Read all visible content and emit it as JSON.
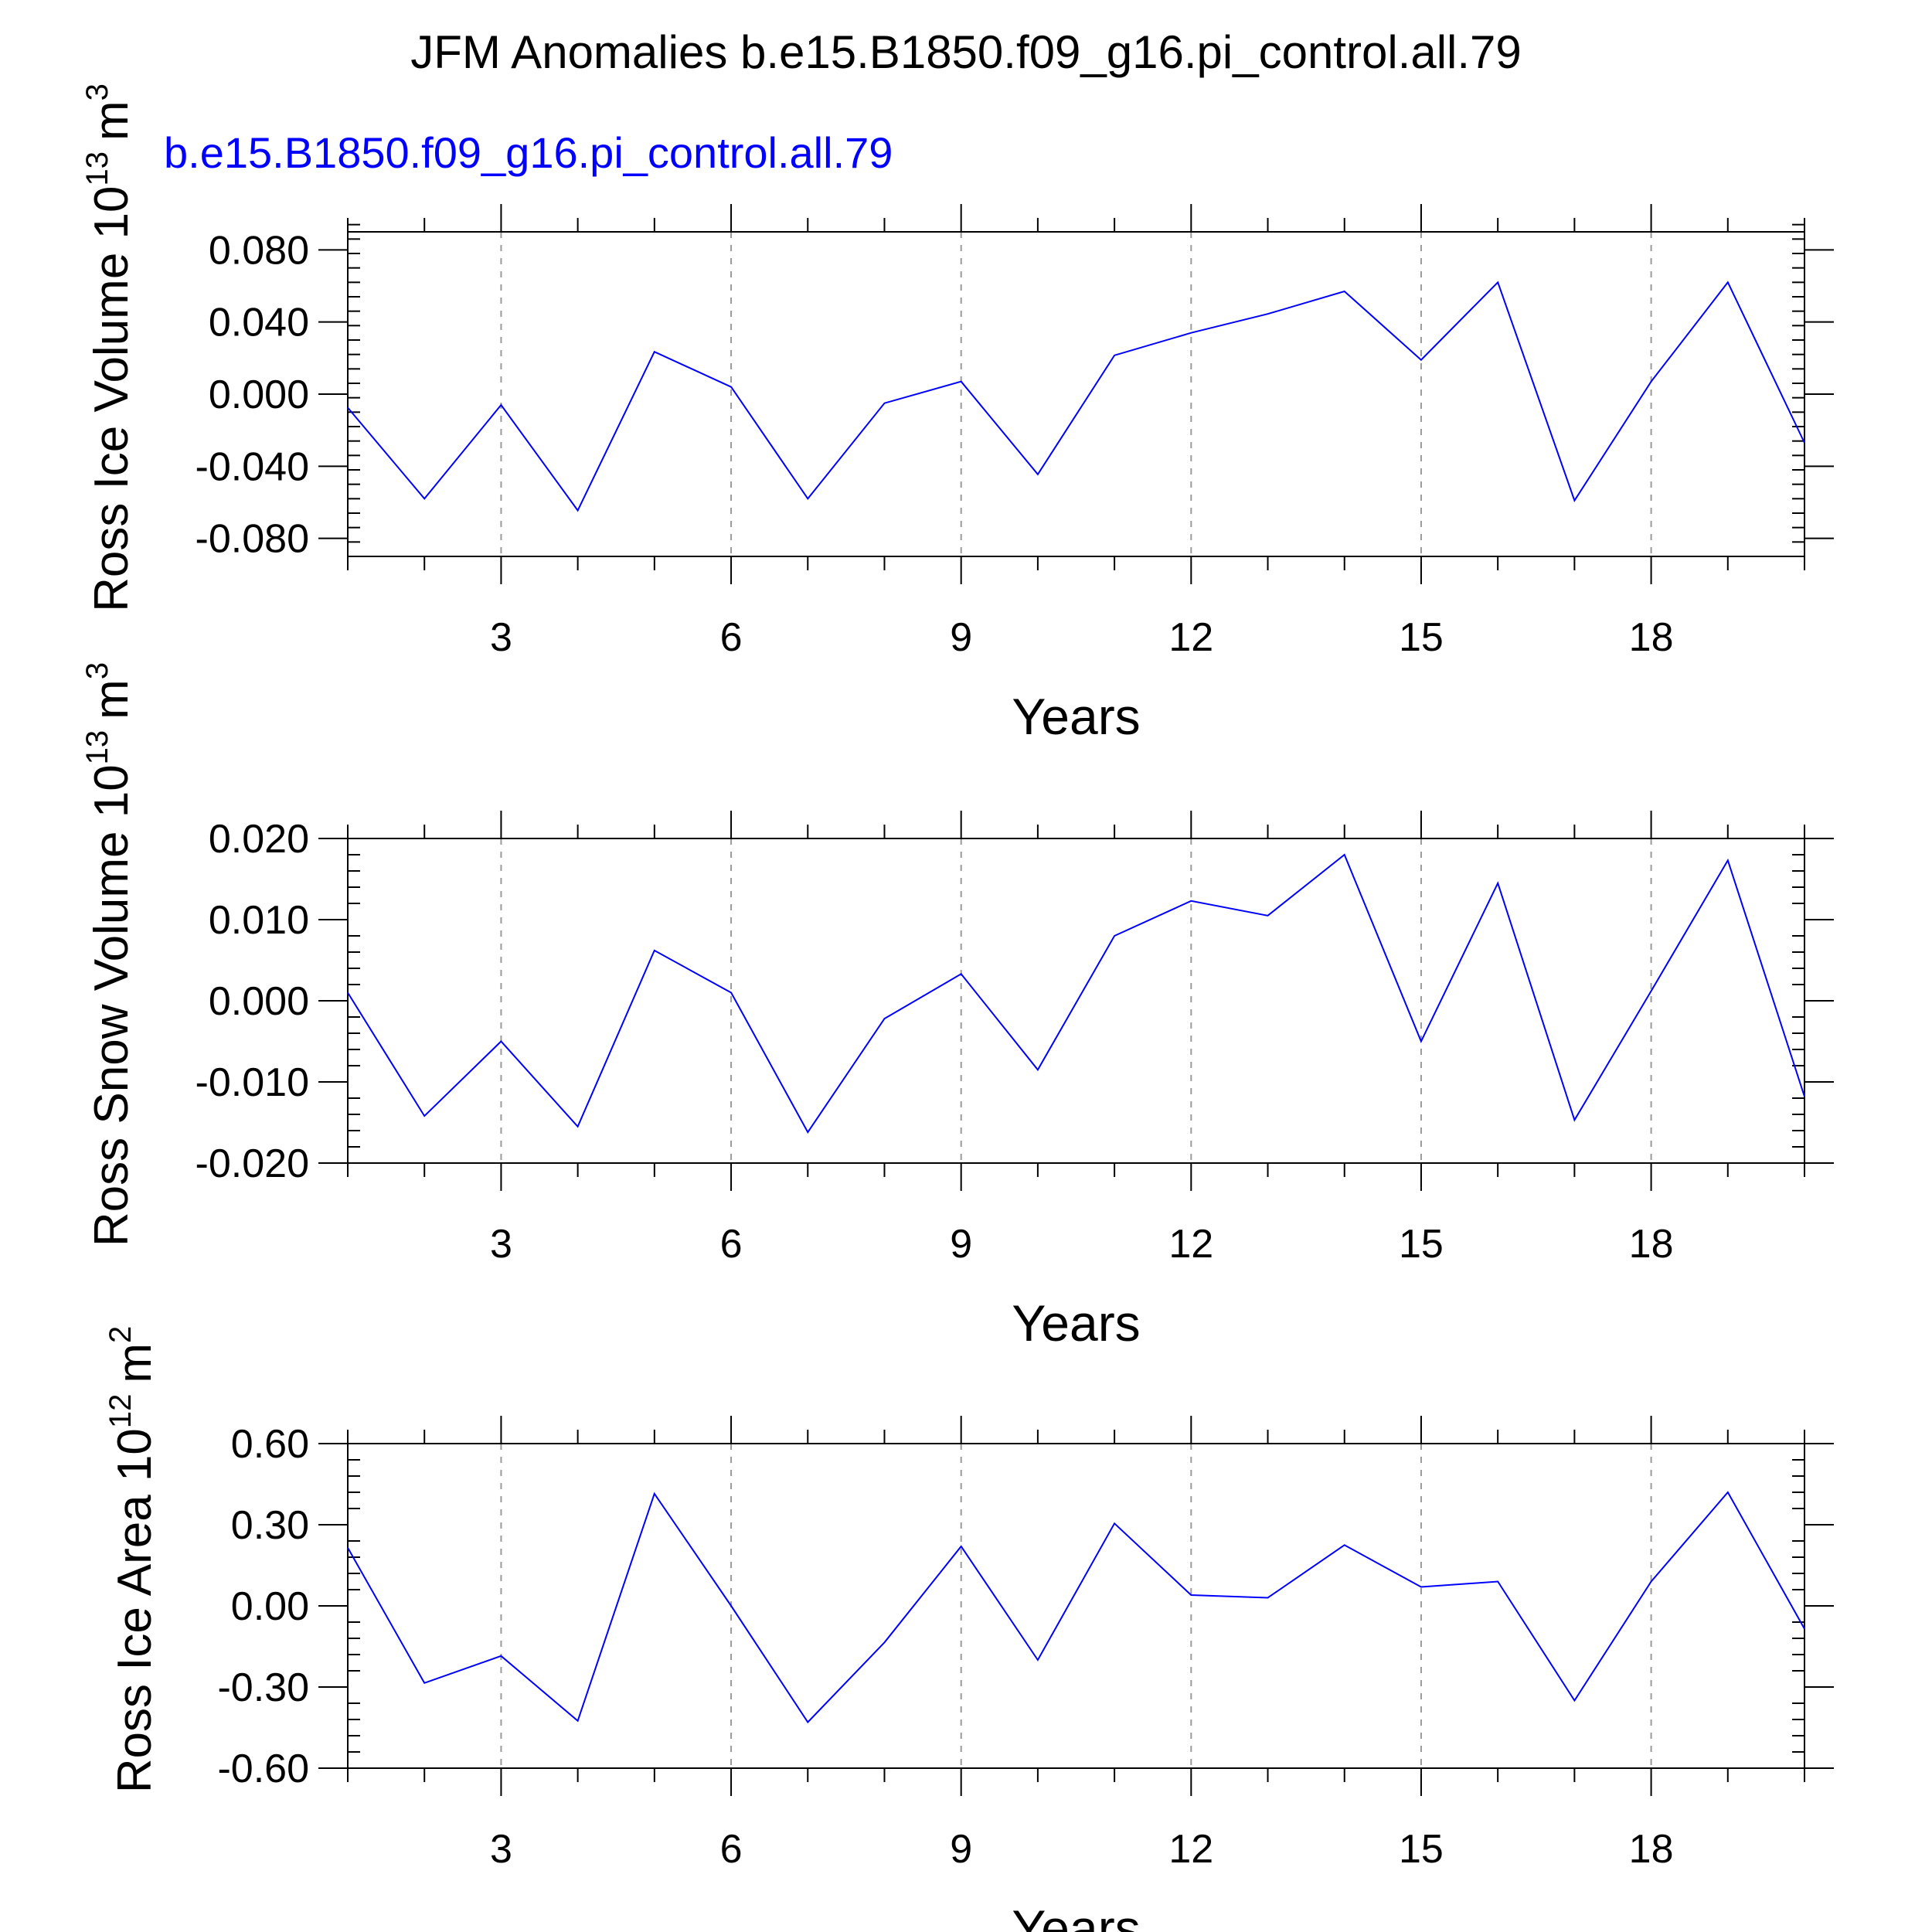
{
  "page": {
    "title": "JFM Anomalies b.e15.B1850.f09_g16.pi_control.all.79",
    "legend_label": "b.e15.B1850.f09_g16.pi_control.all.79",
    "legend_color": "#0000ff"
  },
  "chart_data": [
    {
      "type": "line",
      "xlabel": "Years",
      "ylabel_main": "Ross Ice Volume 10",
      "ylabel_exp": "13",
      "ylabel_unit": "m",
      "ylabel_unit_exp": "3",
      "xlim": [
        1,
        20
      ],
      "ylim": [
        -0.09,
        0.09
      ],
      "xticks": [
        3,
        6,
        9,
        12,
        15,
        18
      ],
      "xtick_labels": [
        "3",
        "6",
        "9",
        "12",
        "15",
        "18"
      ],
      "yticks": [
        0.08,
        0.04,
        0.0,
        -0.04,
        -0.08
      ],
      "ytick_labels": [
        "0.080",
        "0.040",
        "0.000",
        "-0.040",
        "-0.080"
      ],
      "grid": "vertical dashed at major x ticks",
      "series": [
        {
          "color": "#0000ff",
          "x": [
            1,
            2,
            3,
            4,
            5,
            6,
            7,
            8,
            9,
            10,
            11,
            12,
            13,
            14,
            15,
            16,
            17,
            18,
            19,
            20
          ],
          "values": [
            -0.0075,
            -0.058,
            -0.006,
            -0.0645,
            0.0235,
            0.004,
            -0.058,
            -0.005,
            0.007,
            -0.0445,
            0.0215,
            0.034,
            0.0445,
            0.057,
            0.019,
            0.062,
            -0.059,
            0.007,
            0.062,
            -0.027
          ]
        }
      ]
    },
    {
      "type": "line",
      "xlabel": "Years",
      "ylabel_main": "Ross Snow Volume 10",
      "ylabel_exp": "13",
      "ylabel_unit": "m",
      "ylabel_unit_exp": "3",
      "xlim": [
        1,
        20
      ],
      "ylim": [
        -0.02,
        0.02
      ],
      "xticks": [
        3,
        6,
        9,
        12,
        15,
        18
      ],
      "xtick_labels": [
        "3",
        "6",
        "9",
        "12",
        "15",
        "18"
      ],
      "yticks": [
        0.02,
        0.01,
        0.0,
        -0.01,
        -0.02
      ],
      "ytick_labels": [
        "0.020",
        "0.010",
        "0.000",
        "-0.010",
        "-0.020"
      ],
      "grid": "vertical dashed at major x ticks",
      "series": [
        {
          "color": "#0000ff",
          "x": [
            1,
            2,
            3,
            4,
            5,
            6,
            7,
            8,
            9,
            10,
            11,
            12,
            13,
            14,
            15,
            16,
            17,
            18,
            19,
            20
          ],
          "values": [
            0.001,
            -0.0142,
            -0.005,
            -0.0155,
            0.0062,
            0.001,
            -0.0162,
            -0.0022,
            0.0033,
            -0.0085,
            0.008,
            0.0123,
            0.0105,
            0.018,
            -0.005,
            0.0145,
            -0.0147,
            0.0012,
            0.0173,
            -0.0118
          ]
        }
      ]
    },
    {
      "type": "line",
      "xlabel": "Years",
      "ylabel_main": "Ross Ice Area 10",
      "ylabel_exp": "12",
      "ylabel_unit": "m",
      "ylabel_unit_exp": "2",
      "xlim": [
        1,
        20
      ],
      "ylim": [
        -0.6,
        0.6
      ],
      "xticks": [
        3,
        6,
        9,
        12,
        15,
        18
      ],
      "xtick_labels": [
        "3",
        "6",
        "9",
        "12",
        "15",
        "18"
      ],
      "yticks": [
        0.6,
        0.3,
        0.0,
        -0.3,
        -0.6
      ],
      "ytick_labels": [
        "0.60",
        "0.30",
        "0.00",
        "-0.30",
        "-0.60"
      ],
      "grid": "vertical dashed at major x ticks",
      "series": [
        {
          "color": "#0000ff",
          "x": [
            1,
            2,
            3,
            4,
            5,
            6,
            7,
            8,
            9,
            10,
            11,
            12,
            13,
            14,
            15,
            16,
            17,
            18,
            19,
            20
          ],
          "values": [
            0.215,
            -0.285,
            -0.185,
            -0.425,
            0.415,
            0.0,
            -0.43,
            -0.135,
            0.22,
            -0.2,
            0.305,
            0.04,
            0.03,
            0.225,
            0.07,
            0.09,
            -0.35,
            0.09,
            0.42,
            -0.085
          ]
        }
      ]
    }
  ]
}
